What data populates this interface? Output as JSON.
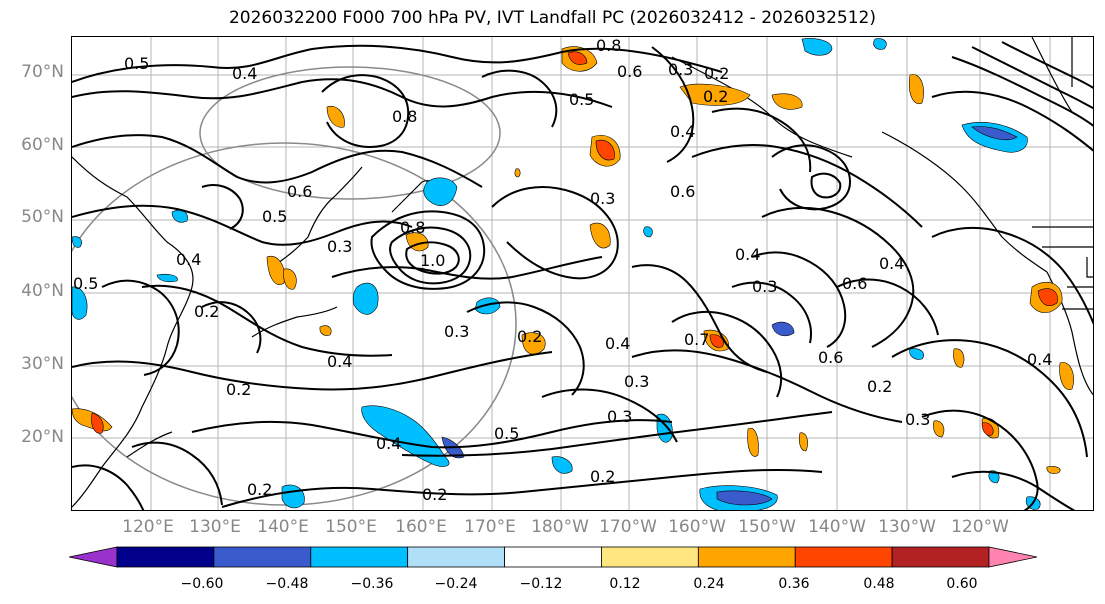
{
  "title": "2026032200 F000 700 hPa PV, IVT Landfall PC (2026032412 - 2026032512)",
  "lat_labels": [
    "70°N",
    "60°N",
    "50°N",
    "40°N",
    "30°N",
    "20°N"
  ],
  "lon_labels": [
    "120°E",
    "130°E",
    "140°E",
    "150°E",
    "160°E",
    "170°E",
    "180°W",
    "170°W",
    "160°W",
    "150°W",
    "140°W",
    "130°W",
    "120°W"
  ],
  "contour_labels": [
    "0.8",
    "0.5",
    "0.4",
    "0.8",
    "0.6",
    "0.3",
    "0.2",
    "0.5",
    "0.3",
    "0.4",
    "0.6",
    "0.5",
    "1.0",
    "0.3",
    "0.8",
    "0.4",
    "0.6",
    "0.4",
    "0.5",
    "0.2",
    "0.3",
    "0.4",
    "0.7",
    "0.6",
    "0.4",
    "0.2",
    "0.3",
    "0.5",
    "0.2",
    "0.3",
    "0.2",
    "0.2",
    "0.4",
    "0.2",
    "0.3",
    "0.4",
    "0.2",
    "0.6",
    "0.2",
    "0.4",
    "0.3"
  ],
  "colorbar": {
    "ticks": [
      "−0.60",
      "−0.48",
      "−0.36",
      "−0.24",
      "−0.12",
      "0.12",
      "0.24",
      "0.36",
      "0.48",
      "0.60"
    ],
    "colors": [
      "#9932cc",
      "#00008b",
      "#3a5bcc",
      "#00bfff",
      "#b0e0f8",
      "#ffffff",
      "#ffe680",
      "#ffa500",
      "#ff4500",
      "#b22222",
      "#ff85b0"
    ]
  }
}
